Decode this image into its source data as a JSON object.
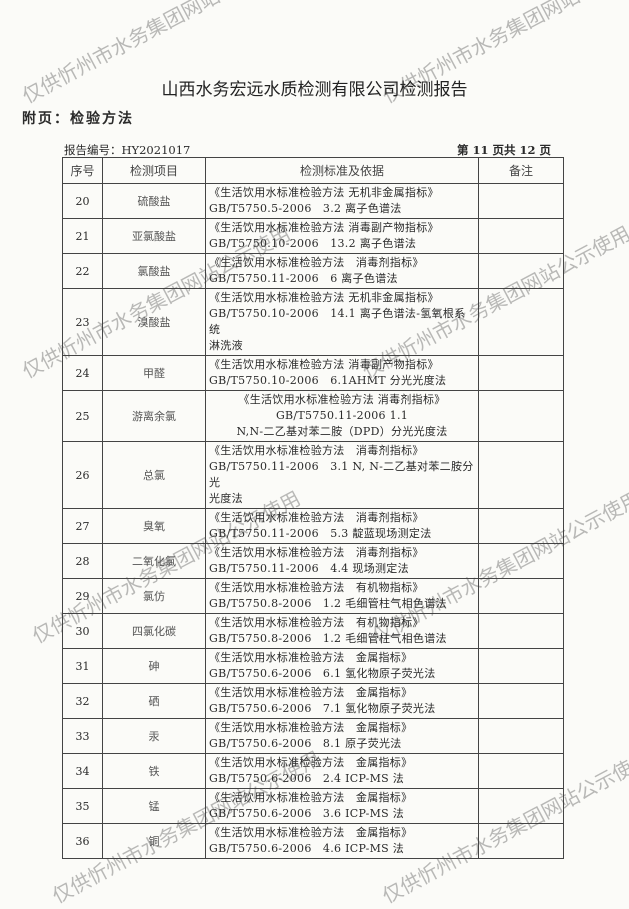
{
  "header": {
    "title": "山西水务宏远水质检测有限公司检测报告",
    "subtitle": "附页：检验方法",
    "report_no": "报告编号：HY2021017",
    "page": "第 11 页共 12 页"
  },
  "table": {
    "columns": [
      "序号",
      "检测项目",
      "检测标准及依据",
      "备注"
    ],
    "rows": [
      {
        "no": "20",
        "item": "硫酸盐",
        "l1": "《生活饮用水标准检验方法 无机非金属指标》",
        "l2": "GB/T5750.5-2006　3.2 离子色谱法",
        "l3": ""
      },
      {
        "no": "21",
        "item": "亚氯酸盐",
        "l1": "《生活饮用水标准检验方法 消毒副产物指标》",
        "l2": "GB/T5750.10-2006　13.2 离子色谱法",
        "l3": ""
      },
      {
        "no": "22",
        "item": "氯酸盐",
        "l1": "《生活饮用水标准检验方法　消毒剂指标》",
        "l2": "GB/T5750.11-2006　6 离子色谱法",
        "l3": ""
      },
      {
        "no": "23",
        "item": "溴酸盐",
        "l1": "《生活饮用水标准检验方法 无机非金属指标》",
        "l2": "GB/T5750.10-2006　14.1 离子色谱法-氢氧根系统",
        "l3": "淋洗液"
      },
      {
        "no": "24",
        "item": "甲醛",
        "l1": "《生活饮用水标准检验方法 消毒副产物指标》",
        "l2": "GB/T5750.10-2006　6.1AHMT 分光光度法",
        "l3": ""
      },
      {
        "no": "25",
        "item": "游离余氯",
        "l1": "《生活饮用水标准检验方法 消毒剂指标》",
        "l2": "GB/T5750.11-2006 1.1",
        "l3": "N,N-二乙基对苯二胺（DPD）分光光度法",
        "center": true
      },
      {
        "no": "26",
        "item": "总氯",
        "l1": "《生活饮用水标准检验方法　消毒剂指标》",
        "l2": "GB/T5750.11-2006　3.1 N, N-二乙基对苯二胺分光",
        "l3": "光度法"
      },
      {
        "no": "27",
        "item": "臭氧",
        "l1": "《生活饮用水标准检验方法　消毒剂指标》",
        "l2": "GB/T5750.11-2006　5.3 靛蓝现场测定法",
        "l3": ""
      },
      {
        "no": "28",
        "item": "二氧化氯",
        "l1": "《生活饮用水标准检验方法　消毒剂指标》",
        "l2": "GB/T5750.11-2006　4.4 现场测定法",
        "l3": ""
      },
      {
        "no": "29",
        "item": "氯仿",
        "l1": "《生活饮用水标准检验方法　有机物指标》",
        "l2": "GB/T5750.8-2006　1.2 毛细管柱气相色谱法",
        "l3": ""
      },
      {
        "no": "30",
        "item": "四氯化碳",
        "l1": "《生活饮用水标准检验方法　有机物指标》",
        "l2": "GB/T5750.8-2006　1.2 毛细管柱气相色谱法",
        "l3": ""
      },
      {
        "no": "31",
        "item": "砷",
        "l1": "《生活饮用水标准检验方法　金属指标》",
        "l2": "GB/T5750.6-2006　6.1 氢化物原子荧光法",
        "l3": ""
      },
      {
        "no": "32",
        "item": "硒",
        "l1": "《生活饮用水标准检验方法　金属指标》",
        "l2": "GB/T5750.6-2006　7.1 氢化物原子荧光法",
        "l3": ""
      },
      {
        "no": "33",
        "item": "汞",
        "l1": "《生活饮用水标准检验方法　金属指标》",
        "l2": "GB/T5750.6-2006　8.1 原子荧光法",
        "l3": ""
      },
      {
        "no": "34",
        "item": "铁",
        "l1": "《生活饮用水标准检验方法　金属指标》",
        "l2": "GB/T5750.6-2006　2.4 ICP-MS 法",
        "l3": ""
      },
      {
        "no": "35",
        "item": "锰",
        "l1": "《生活饮用水标准检验方法　金属指标》",
        "l2": "GB/T5750.6-2006　3.6 ICP-MS 法",
        "l3": ""
      },
      {
        "no": "36",
        "item": "铜",
        "l1": "《生活饮用水标准检验方法　金属指标》",
        "l2": "GB/T5750.6-2006　4.6 ICP-MS 法",
        "l3": ""
      }
    ]
  },
  "watermark": "仅供忻州市水务集团网站公示使用"
}
